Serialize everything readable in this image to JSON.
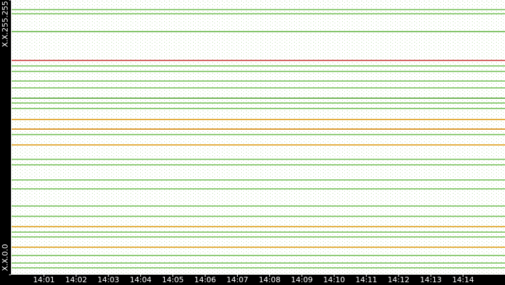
{
  "chart_data": {
    "type": "strips",
    "xlim": [
      0,
      15.3
    ],
    "xticks": [
      {
        "value": 1,
        "label": "14:01"
      },
      {
        "value": 2,
        "label": "14:02"
      },
      {
        "value": 3,
        "label": "14:03"
      },
      {
        "value": 4,
        "label": "14:04"
      },
      {
        "value": 5,
        "label": "14:05"
      },
      {
        "value": 6,
        "label": "14:06"
      },
      {
        "value": 7,
        "label": "14:07"
      },
      {
        "value": 8,
        "label": "14:08"
      },
      {
        "value": 9,
        "label": "14:09"
      },
      {
        "value": 10,
        "label": "14:10"
      },
      {
        "value": 11,
        "label": "14:11"
      },
      {
        "value": 12,
        "label": "14:12"
      },
      {
        "value": 13,
        "label": "14:13"
      },
      {
        "value": 14,
        "label": "14:14"
      }
    ],
    "ylim": [
      0,
      65535
    ],
    "yticks": [
      {
        "value": 0,
        "label": "X.X.0.0"
      },
      {
        "value": 65535,
        "label": "X.X.255.255"
      }
    ],
    "strips": [
      {
        "y": 63242,
        "color": "#7dc462"
      },
      {
        "y": 62259,
        "color": "#7dc462"
      },
      {
        "y": 57999,
        "color": "#6ab84c"
      },
      {
        "y": 51118,
        "color": "#d04848"
      },
      {
        "y": 49807,
        "color": "#7dc462"
      },
      {
        "y": 48497,
        "color": "#7dc462"
      },
      {
        "y": 46203,
        "color": "#7dc462"
      },
      {
        "y": 44564,
        "color": "#7dc462"
      },
      {
        "y": 42107,
        "color": "#5aa83c"
      },
      {
        "y": 40960,
        "color": "#7dc462"
      },
      {
        "y": 39649,
        "color": "#7dc462"
      },
      {
        "y": 37028,
        "color": "#e0a020"
      },
      {
        "y": 34734,
        "color": "#d88a10"
      },
      {
        "y": 33423,
        "color": "#7dc462"
      },
      {
        "y": 30966,
        "color": "#e0a020"
      },
      {
        "y": 27525,
        "color": "#7dc462"
      },
      {
        "y": 26214,
        "color": "#7dc462"
      },
      {
        "y": 22610,
        "color": "#7dc462"
      },
      {
        "y": 20480,
        "color": "#7dc462"
      },
      {
        "y": 16384,
        "color": "#7dc462"
      },
      {
        "y": 13926,
        "color": "#7dc462"
      },
      {
        "y": 11469,
        "color": "#e0a020"
      },
      {
        "y": 10158,
        "color": "#7dc462"
      },
      {
        "y": 9011,
        "color": "#7dc462"
      },
      {
        "y": 6554,
        "color": "#e0a020"
      },
      {
        "y": 4588,
        "color": "#7dc462"
      },
      {
        "y": 2785,
        "color": "#7dc462"
      },
      {
        "y": 1638,
        "color": "#7dc462"
      }
    ]
  }
}
